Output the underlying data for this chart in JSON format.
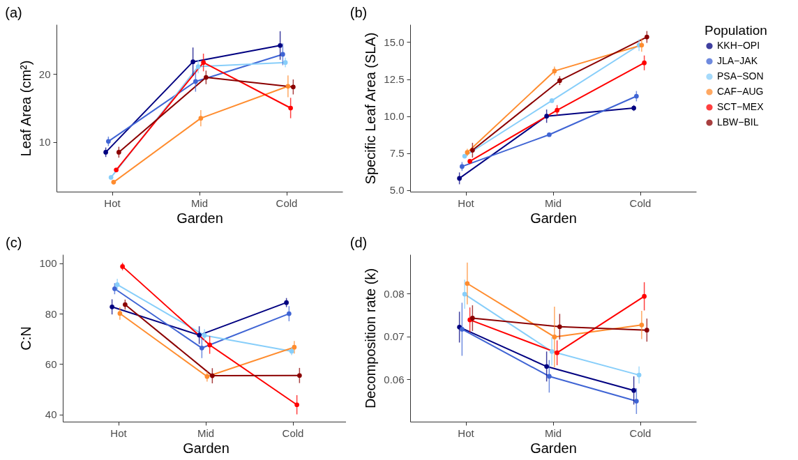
{
  "chart_data": [
    {
      "type": "line",
      "title": "(a)",
      "xlabel": "Garden",
      "ylabel": "Leaf Area (cm²)",
      "categories": [
        "Hot",
        "Mid",
        "Cold"
      ],
      "ylim": [
        2.7,
        27.3
      ],
      "yticks": [
        10,
        20
      ],
      "grid": false,
      "marker": "circle",
      "legend": false,
      "series": [
        {
          "color": "#000080",
          "values": [
            8.5,
            21.8,
            24.2
          ],
          "errors": [
            0.7,
            2.1,
            2.1
          ]
        },
        {
          "color": "#3f64d4",
          "values": [
            10.1,
            18.9,
            22.9
          ],
          "errors": [
            0.7,
            1.5,
            1.6
          ]
        },
        {
          "color": "#87cefa",
          "values": [
            4.8,
            21.1,
            21.7
          ],
          "errors": [
            0.3,
            1.0,
            0.7
          ]
        },
        {
          "color": "#ff8c2e",
          "values": [
            4.1,
            13.5,
            18.2
          ],
          "errors": [
            0.3,
            1.2,
            1.6
          ]
        },
        {
          "color": "#ff0000",
          "values": [
            5.9,
            21.7,
            15.0
          ],
          "errors": [
            0.3,
            1.3,
            1.5
          ]
        },
        {
          "color": "#8b0000",
          "values": [
            8.5,
            19.5,
            18.1
          ],
          "errors": [
            0.8,
            1.0,
            1.1
          ]
        }
      ]
    },
    {
      "type": "line",
      "title": "(b)",
      "xlabel": "Garden",
      "ylabel": "Specific Leaf Area (SLA)",
      "categories": [
        "Hot",
        "Mid",
        "Cold"
      ],
      "ylim": [
        4.9,
        16.2
      ],
      "yticks": [
        {
          "value": 5,
          "label": "5.0"
        },
        7.5,
        {
          "value": 10,
          "label": "10.0"
        },
        12.5,
        {
          "value": 15,
          "label": "15.0"
        }
      ],
      "grid": false,
      "marker": "circle",
      "legend": "right",
      "legend_title": "Population",
      "series": [
        {
          "name": "KKH−OPI",
          "color": "#000080",
          "values": [
            5.8,
            10.0,
            10.55
          ],
          "errors": [
            0.4,
            0.45,
            0.2
          ]
        },
        {
          "name": "JLA−JAK",
          "color": "#3f64d4",
          "values": [
            6.6,
            8.75,
            11.35
          ],
          "errors": [
            0.3,
            0.1,
            0.35
          ]
        },
        {
          "name": "PSA−SON",
          "color": "#87cefa",
          "values": [
            7.3,
            11.05,
            14.8
          ],
          "errors": [
            0.1,
            0.15,
            0.4
          ]
        },
        {
          "name": "CAF−AUG",
          "color": "#ff8c2e",
          "values": [
            7.55,
            13.05,
            14.8
          ],
          "errors": [
            0.25,
            0.3,
            0.45
          ]
        },
        {
          "name": "SCT−MEX",
          "color": "#ff0000",
          "values": [
            6.95,
            10.4,
            13.6
          ],
          "errors": [
            0.15,
            0.35,
            0.5
          ]
        },
        {
          "name": "LBW−BIL",
          "color": "#8b0000",
          "values": [
            7.7,
            12.4,
            15.35
          ],
          "errors": [
            0.5,
            0.3,
            0.4
          ]
        }
      ]
    },
    {
      "type": "line",
      "title": "(c)",
      "xlabel": "Garden",
      "ylabel": "C:N",
      "categories": [
        "Hot",
        "Mid",
        "Cold"
      ],
      "ylim": [
        37.2,
        103.5
      ],
      "yticks": [
        40,
        60,
        80,
        100
      ],
      "grid": false,
      "marker": "circle",
      "legend": false,
      "series": [
        {
          "color": "#000080",
          "values": [
            82.7,
            71.5,
            84.4
          ],
          "errors": [
            3,
            3.5,
            1.8
          ]
        },
        {
          "color": "#3f64d4",
          "values": [
            89.9,
            66.4,
            80
          ],
          "errors": [
            2.2,
            4,
            3
          ]
        },
        {
          "color": "#87cefa",
          "values": [
            91.5,
            71.4,
            65.1
          ],
          "errors": [
            2.3,
            2.5,
            1.5
          ]
        },
        {
          "color": "#ff8c2e",
          "values": [
            80.1,
            55.1,
            66.7
          ],
          "errors": [
            2.5,
            2,
            2.5
          ]
        },
        {
          "color": "#ff0000",
          "values": [
            98.7,
            67.6,
            43.9
          ],
          "errors": [
            1.5,
            3.5,
            3.8
          ]
        },
        {
          "color": "#8b0000",
          "values": [
            83.6,
            55.4,
            55.5
          ],
          "errors": [
            2,
            3,
            3
          ]
        }
      ]
    },
    {
      "type": "line",
      "title": "(d)",
      "xlabel": "Garden",
      "ylabel": "Decomposition rate (k)",
      "categories": [
        "Hot",
        "Mid",
        "Cold"
      ],
      "ylim": [
        0.0501,
        0.0892
      ],
      "yticks": [
        0.06,
        0.07,
        0.08
      ],
      "grid": false,
      "marker": "circle",
      "legend": false,
      "series": [
        {
          "color": "#000080",
          "values": [
            0.0722,
            0.063,
            0.0574
          ],
          "errors": [
            0.0036,
            0.0035,
            0.0033
          ]
        },
        {
          "color": "#3f64d4",
          "values": [
            0.0717,
            0.0607,
            0.0549
          ],
          "errors": [
            0.0062,
            0.0038,
            0.003
          ]
        },
        {
          "color": "#87cefa",
          "values": [
            0.0799,
            0.0665,
            0.061
          ],
          "errors": [
            0.0034,
            0.0033,
            0.002
          ]
        },
        {
          "color": "#ff8c2e",
          "values": [
            0.0824,
            0.0699,
            0.0727
          ],
          "errors": [
            0.0049,
            0.0071,
            0.0033
          ]
        },
        {
          "color": "#ff0000",
          "values": [
            0.0739,
            0.0662,
            0.0794
          ],
          "errors": [
            0.0029,
            0.0029,
            0.0033
          ]
        },
        {
          "color": "#8b0000",
          "values": [
            0.0743,
            0.0723,
            0.0715
          ],
          "errors": [
            0.003,
            0.003,
            0.0027
          ]
        }
      ]
    }
  ]
}
